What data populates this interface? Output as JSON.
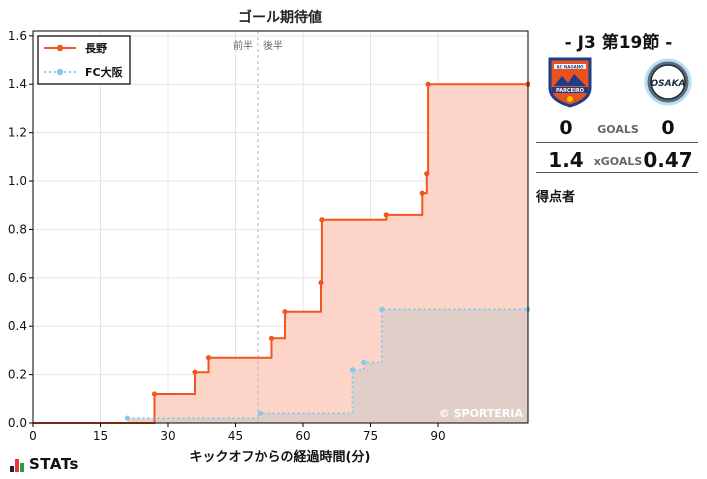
{
  "chart_data": {
    "type": "line",
    "title": "ゴール期待値",
    "xlabel": "キックオフからの経過時間(分)",
    "ylabel": "",
    "xlim": [
      0,
      110
    ],
    "ylim": [
      0,
      1.62
    ],
    "xticks": [
      0,
      15,
      30,
      45,
      60,
      75,
      90
    ],
    "yticks": [
      0.0,
      0.2,
      0.4,
      0.6,
      0.8,
      1.0,
      1.2,
      1.4,
      1.6
    ],
    "ytick_labels": [
      "0.0",
      "0.2",
      "0.4",
      "0.6",
      "0.8",
      "1.0",
      "1.2",
      "1.4",
      "1.6"
    ],
    "grid": true,
    "legend_position": "top-left",
    "halftime_marker": {
      "x": 50,
      "first_half_label": "前半",
      "second_half_label": "後半"
    },
    "watermark": "© SPORTERIA",
    "series": [
      {
        "name": "長野",
        "color": "#f0561e",
        "fill": "#fdd5c8",
        "style": "solid",
        "x": [
          0,
          27,
          36,
          39,
          53,
          56,
          64,
          64.2,
          78.5,
          86.5,
          87.5,
          87.8,
          110
        ],
        "y": [
          0,
          0.12,
          0.21,
          0.27,
          0.35,
          0.46,
          0.58,
          0.84,
          0.86,
          0.95,
          1.03,
          1.4,
          1.4
        ]
      },
      {
        "name": "FC大阪",
        "color": "#86c8ee",
        "fill": "#ddccc8",
        "style": "dotted",
        "x": [
          21,
          50.5,
          71,
          73.5,
          77.5,
          110
        ],
        "y": [
          0.02,
          0.04,
          0.22,
          0.25,
          0.47,
          0.47
        ]
      }
    ]
  },
  "panel": {
    "round": "- J3 第19節 -",
    "home_score": "0",
    "away_score": "0",
    "goals_label": "GOALS",
    "home_xg": "1.4",
    "away_xg": "0.47",
    "xg_label": "xGOALS",
    "scorers_label": "得点者",
    "home_crest_text": "AC NAGANO",
    "home_crest_name": "PARCEIRO",
    "away_crest_text": "OSAKA"
  },
  "brand": {
    "text": "STATs"
  }
}
